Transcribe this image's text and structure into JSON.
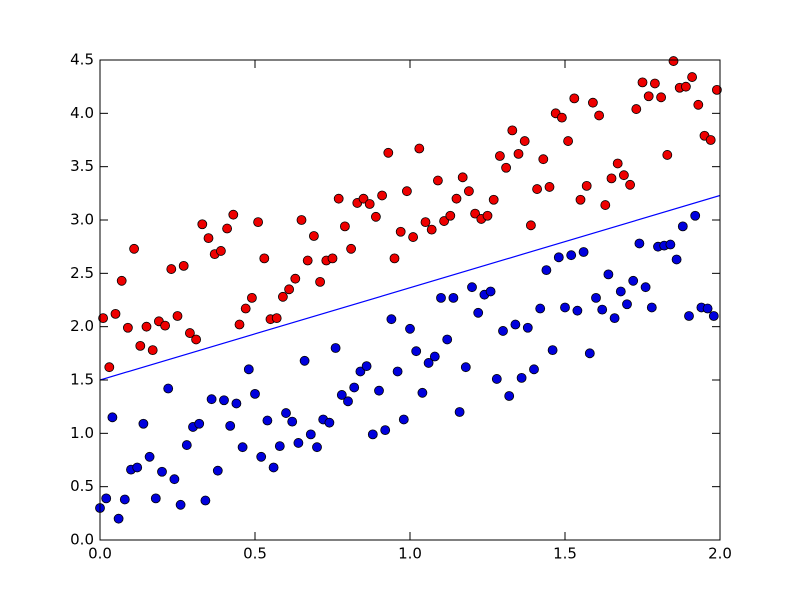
{
  "chart_data": {
    "type": "scatter",
    "xlim": [
      0,
      2
    ],
    "ylim": [
      0,
      4.5
    ],
    "xticks": [
      {
        "value": 0,
        "label": "0.0"
      },
      0.5,
      {
        "value": 1,
        "label": "1.0"
      },
      1.5,
      {
        "value": 2,
        "label": "2.0"
      }
    ],
    "yticks": [
      {
        "value": 0,
        "label": "0.0"
      },
      0.5,
      {
        "value": 1,
        "label": "1.0"
      },
      1.5,
      {
        "value": 2,
        "label": "2.0"
      },
      2.5,
      {
        "value": 3,
        "label": "3.0"
      },
      3.5,
      {
        "value": 4,
        "label": "4.0"
      },
      4.5
    ],
    "series": [
      {
        "type": "scatter",
        "color": "#ee0000",
        "x": [
          0.01,
          0.03,
          0.05,
          0.07,
          0.09,
          0.11,
          0.13,
          0.15,
          0.17,
          0.19,
          0.21,
          0.23,
          0.25,
          0.27,
          0.29,
          0.31,
          0.33,
          0.35,
          0.37,
          0.39,
          0.41,
          0.43,
          0.45,
          0.47,
          0.49,
          0.51,
          0.53,
          0.55,
          0.57,
          0.59,
          0.61,
          0.63,
          0.65,
          0.67,
          0.69,
          0.71,
          0.73,
          0.75,
          0.77,
          0.79,
          0.81,
          0.83,
          0.85,
          0.87,
          0.89,
          0.91,
          0.93,
          0.95,
          0.97,
          0.99,
          1.01,
          1.03,
          1.05,
          1.07,
          1.09,
          1.11,
          1.13,
          1.15,
          1.17,
          1.19,
          1.21,
          1.23,
          1.25,
          1.27,
          1.29,
          1.31,
          1.33,
          1.35,
          1.37,
          1.39,
          1.41,
          1.43,
          1.45,
          1.47,
          1.49,
          1.51,
          1.53,
          1.55,
          1.57,
          1.59,
          1.61,
          1.63,
          1.65,
          1.67,
          1.69,
          1.71,
          1.73,
          1.75,
          1.77,
          1.79,
          1.81,
          1.83,
          1.85,
          1.87,
          1.89,
          1.91,
          1.93,
          1.95,
          1.97,
          1.99
        ],
        "values": [
          2.08,
          1.62,
          2.12,
          2.43,
          1.99,
          2.73,
          1.82,
          2.0,
          1.78,
          2.05,
          2.01,
          2.54,
          2.1,
          2.57,
          1.94,
          1.88,
          2.96,
          2.83,
          2.68,
          2.71,
          2.92,
          3.05,
          2.02,
          2.17,
          2.27,
          2.98,
          2.64,
          2.07,
          2.08,
          2.28,
          2.35,
          2.45,
          3.0,
          2.62,
          2.85,
          2.42,
          2.62,
          2.64,
          3.2,
          2.94,
          2.73,
          3.16,
          3.2,
          3.15,
          3.03,
          3.23,
          3.63,
          2.64,
          2.89,
          3.27,
          2.84,
          3.67,
          2.98,
          2.91,
          3.37,
          2.99,
          3.04,
          3.2,
          3.4,
          3.27,
          3.06,
          3.01,
          3.04,
          3.19,
          3.6,
          3.49,
          3.84,
          3.62,
          3.74,
          2.95,
          3.29,
          3.57,
          3.31,
          4.0,
          3.96,
          3.74,
          4.14,
          3.19,
          3.32,
          4.1,
          3.98,
          3.14,
          3.39,
          3.53,
          3.42,
          3.33,
          4.04,
          4.29,
          4.16,
          4.28,
          4.15,
          3.61,
          4.49,
          4.24,
          4.25,
          4.34,
          4.08,
          3.79,
          3.75,
          4.22
        ]
      },
      {
        "type": "scatter",
        "color": "#0000dd",
        "x": [
          0.0,
          0.02,
          0.04,
          0.06,
          0.08,
          0.1,
          0.12,
          0.14,
          0.16,
          0.18,
          0.2,
          0.22,
          0.24,
          0.26,
          0.28,
          0.3,
          0.32,
          0.34,
          0.36,
          0.38,
          0.4,
          0.42,
          0.44,
          0.46,
          0.48,
          0.5,
          0.52,
          0.54,
          0.56,
          0.58,
          0.6,
          0.62,
          0.64,
          0.66,
          0.68,
          0.7,
          0.72,
          0.74,
          0.76,
          0.78,
          0.8,
          0.82,
          0.84,
          0.86,
          0.88,
          0.9,
          0.92,
          0.94,
          0.96,
          0.98,
          1.0,
          1.02,
          1.04,
          1.06,
          1.08,
          1.1,
          1.12,
          1.14,
          1.16,
          1.18,
          1.2,
          1.22,
          1.24,
          1.26,
          1.28,
          1.3,
          1.32,
          1.34,
          1.36,
          1.38,
          1.4,
          1.42,
          1.44,
          1.46,
          1.48,
          1.5,
          1.52,
          1.54,
          1.56,
          1.58,
          1.6,
          1.62,
          1.64,
          1.66,
          1.68,
          1.7,
          1.72,
          1.74,
          1.76,
          1.78,
          1.8,
          1.82,
          1.84,
          1.86,
          1.88,
          1.9,
          1.92,
          1.94,
          1.96,
          1.98
        ],
        "values": [
          0.3,
          0.39,
          1.15,
          0.2,
          0.38,
          0.66,
          0.68,
          1.09,
          0.78,
          0.39,
          0.64,
          1.42,
          0.57,
          0.33,
          0.89,
          1.06,
          1.09,
          0.37,
          1.32,
          0.65,
          1.31,
          1.07,
          1.28,
          0.87,
          1.6,
          1.37,
          0.78,
          1.12,
          0.68,
          0.88,
          1.19,
          1.11,
          0.91,
          1.68,
          0.99,
          0.87,
          1.13,
          1.1,
          1.8,
          1.36,
          1.3,
          1.43,
          1.58,
          1.63,
          0.99,
          1.4,
          1.03,
          2.07,
          1.58,
          1.13,
          1.98,
          1.77,
          1.38,
          1.66,
          1.72,
          2.27,
          1.88,
          2.27,
          1.2,
          1.62,
          2.37,
          2.13,
          2.3,
          2.33,
          1.51,
          1.96,
          1.35,
          2.02,
          1.52,
          1.99,
          1.6,
          2.17,
          2.53,
          1.78,
          2.65,
          2.18,
          2.67,
          2.15,
          2.7,
          1.75,
          2.27,
          2.16,
          2.49,
          2.08,
          2.33,
          2.21,
          2.43,
          2.78,
          2.37,
          2.18,
          2.75,
          2.76,
          2.77,
          2.63,
          2.94,
          2.1,
          3.04,
          2.18,
          2.17,
          2.1
        ]
      },
      {
        "type": "line",
        "color": "#0000ff",
        "x": [
          0,
          2
        ],
        "values": [
          1.5,
          3.23
        ]
      }
    ]
  }
}
